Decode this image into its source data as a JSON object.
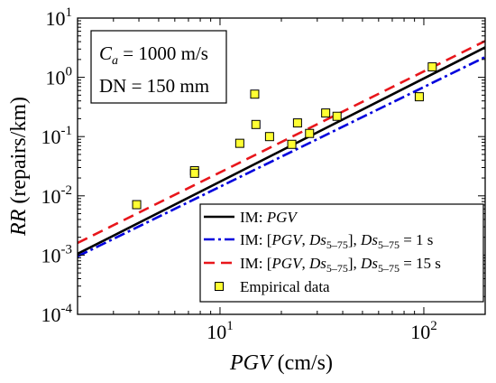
{
  "chart_data": {
    "type": "line",
    "xlabel": {
      "text": "PGV",
      "unit": " (cm/s)"
    },
    "ylabel": {
      "text": "RR",
      "unit": " (repairs/km)"
    },
    "xlim": [
      2,
      200
    ],
    "ylim": [
      0.0001,
      10
    ],
    "xscale": "log",
    "yscale": "log",
    "x_ticks": [
      {
        "value": 10,
        "base": "10",
        "exp": "1"
      },
      {
        "value": 100,
        "base": "10",
        "exp": "2"
      }
    ],
    "y_ticks": [
      {
        "value": 0.0001,
        "base": "10",
        "exp": "-4"
      },
      {
        "value": 0.001,
        "base": "10",
        "exp": "-3"
      },
      {
        "value": 0.01,
        "base": "10",
        "exp": "-2"
      },
      {
        "value": 0.1,
        "base": "10",
        "exp": "-1"
      },
      {
        "value": 1,
        "base": "10",
        "exp": "0"
      },
      {
        "value": 10,
        "base": "10",
        "exp": "1"
      }
    ],
    "annotation": {
      "line1": {
        "var": "C",
        "sub": "a",
        "rest": " = 1000 m/s"
      },
      "line2": "DN = 150 mm"
    },
    "legend_position": "bottom-right",
    "series": [
      {
        "kind": "line",
        "legend": [
          {
            "t": "IM: ",
            "i": false,
            "s": false
          },
          {
            "t": "PGV",
            "i": true,
            "s": false
          }
        ],
        "color": "#000000",
        "dash": "",
        "x": [
          2,
          200
        ],
        "y": [
          0.00105,
          3.2
        ]
      },
      {
        "kind": "line",
        "legend": [
          {
            "t": "IM: [",
            "i": false,
            "s": false
          },
          {
            "t": "PGV",
            "i": true,
            "s": false
          },
          {
            "t": ", ",
            "i": false,
            "s": false
          },
          {
            "t": "Ds",
            "i": true,
            "s": false
          },
          {
            "t": "5–75",
            "i": false,
            "s": true
          },
          {
            "t": "], ",
            "i": false,
            "s": false
          },
          {
            "t": "Ds",
            "i": true,
            "s": false
          },
          {
            "t": "5–75",
            "i": false,
            "s": true
          },
          {
            "t": " = 1 s",
            "i": false,
            "s": false
          }
        ],
        "color": "#0000dd",
        "dash": "12 4 3 4",
        "x": [
          2,
          200
        ],
        "y": [
          0.00095,
          2.2
        ]
      },
      {
        "kind": "line",
        "legend": [
          {
            "t": "IM: [",
            "i": false,
            "s": false
          },
          {
            "t": "PGV",
            "i": true,
            "s": false
          },
          {
            "t": ", ",
            "i": false,
            "s": false
          },
          {
            "t": "Ds",
            "i": true,
            "s": false
          },
          {
            "t": "5–75",
            "i": false,
            "s": true
          },
          {
            "t": "], ",
            "i": false,
            "s": false
          },
          {
            "t": "Ds",
            "i": true,
            "s": false
          },
          {
            "t": "5–75",
            "i": false,
            "s": true
          },
          {
            "t": " = 15 s",
            "i": false,
            "s": false
          }
        ],
        "color": "#e8161b",
        "dash": "12 7",
        "x": [
          2,
          200
        ],
        "y": [
          0.0016,
          4.1
        ]
      },
      {
        "kind": "scatter",
        "legend": [
          {
            "t": "Empirical data",
            "i": false,
            "s": false
          }
        ],
        "color": "#ffff33",
        "edge": "#000000",
        "x": [
          3.9,
          7.5,
          7.5,
          12.5,
          14.8,
          15,
          17.5,
          22.5,
          24,
          27.5,
          33,
          37.5,
          95,
          110
        ],
        "y": [
          0.0071,
          0.0265,
          0.024,
          0.077,
          0.52,
          0.16,
          0.1,
          0.074,
          0.17,
          0.113,
          0.25,
          0.22,
          0.47,
          1.5
        ]
      }
    ]
  }
}
